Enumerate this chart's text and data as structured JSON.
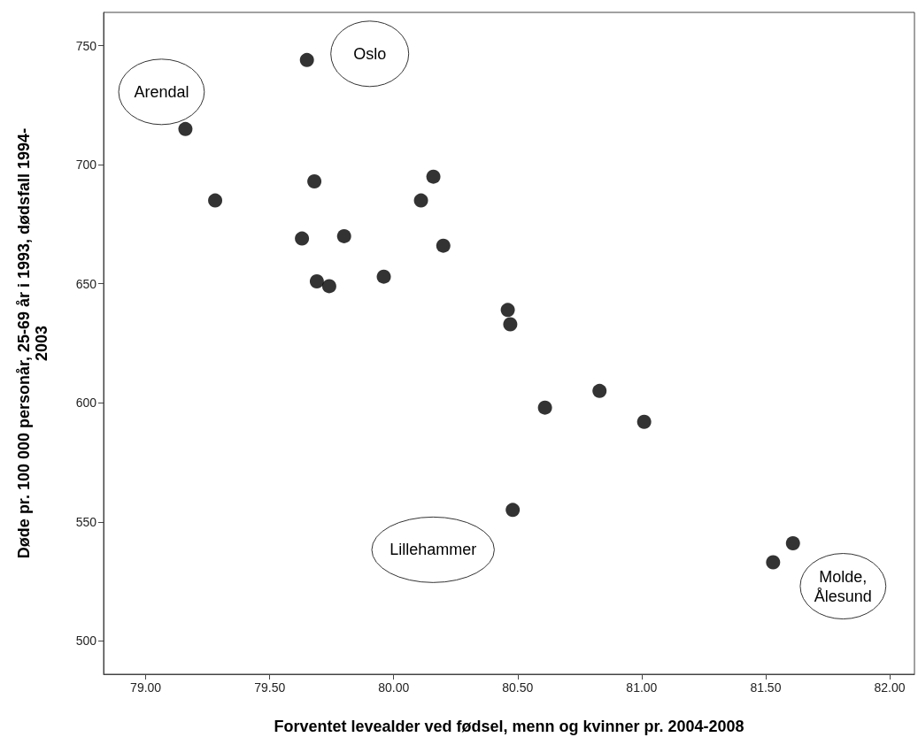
{
  "chart_data": {
    "type": "scatter",
    "xlabel": "Forventet levealder ved fødsel, menn og kvinner pr. 2004-2008",
    "ylabel": "Døde pr. 100 000 personår, 25-69 år i 1993, dødsfall 1994-\n2003",
    "x": [
      79.16,
      79.28,
      79.65,
      79.68,
      79.63,
      79.8,
      79.69,
      79.74,
      79.96,
      80.11,
      80.16,
      80.2,
      80.46,
      80.47,
      80.61,
      80.83,
      81.01,
      80.48,
      81.53,
      81.61
    ],
    "values": [
      715,
      685,
      744,
      693,
      669,
      670,
      651,
      649,
      653,
      685,
      695,
      666,
      639,
      633,
      598,
      605,
      592,
      555,
      533,
      541
    ],
    "color": "#000000",
    "marker": "circle",
    "grid": false,
    "xlim": [
      78.83,
      82.1
    ],
    "xticks": [
      {
        "value": 79,
        "label": "79.00"
      },
      {
        "value": 79.5,
        "label": "79.50"
      },
      {
        "value": 80,
        "label": "80.00"
      },
      {
        "value": 80.5,
        "label": "80.50"
      },
      {
        "value": 81,
        "label": "81.00"
      },
      {
        "value": 81.5,
        "label": "81.50"
      },
      {
        "value": 82,
        "label": "82.00"
      }
    ],
    "ylim": [
      486,
      764
    ],
    "yticks": [
      500,
      550,
      600,
      650,
      700,
      750
    ],
    "annotations": [
      {
        "text": "Arendal",
        "x": 79.16,
        "y": 715
      },
      {
        "text": "Oslo",
        "x": 79.65,
        "y": 744
      },
      {
        "text": "Lillehammer",
        "x": 80.48,
        "y": 555
      },
      {
        "text": "Molde,\nÅlesund",
        "x": 81.53,
        "y": 533
      }
    ]
  }
}
